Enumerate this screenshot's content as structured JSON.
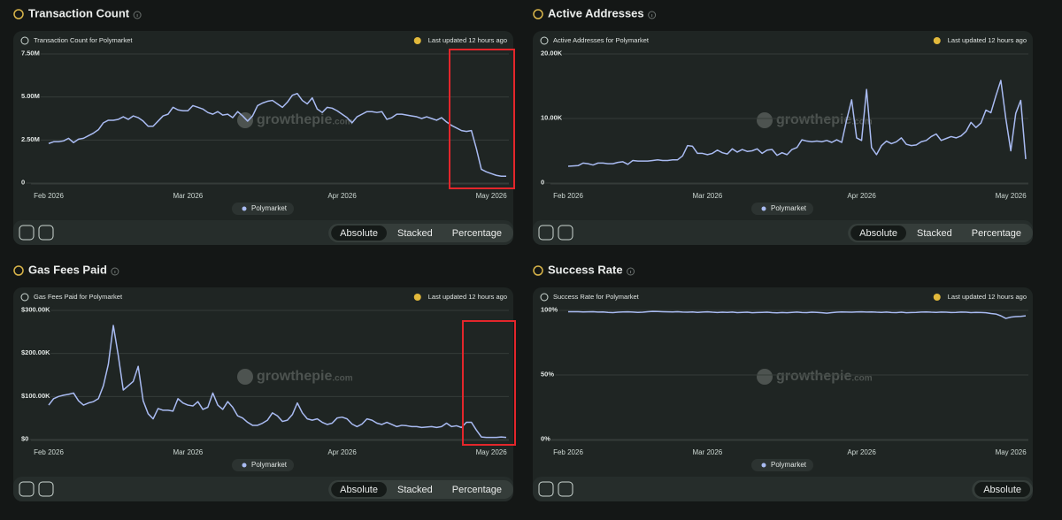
{
  "chart_data": [
    {
      "type": "line",
      "title": "Transaction Count",
      "subtitle": "Transaction Count for Polymarket",
      "updated": "Last updated 12 hours ago",
      "watermark": [
        "growthepie",
        ".com"
      ],
      "controls": [
        "Absolute",
        "Stacked",
        "Percentage"
      ],
      "categories": [
        "Feb 2026",
        null,
        null,
        null,
        null,
        null,
        null,
        null,
        null,
        null,
        null,
        null,
        null,
        null,
        null,
        null,
        null,
        null,
        null,
        null,
        null,
        null,
        null,
        null,
        null,
        null,
        null,
        null,
        "Mar 2026",
        null,
        null,
        null,
        null,
        null,
        null,
        null,
        null,
        null,
        null,
        null,
        null,
        null,
        null,
        null,
        null,
        null,
        null,
        null,
        null,
        null,
        null,
        null,
        null,
        null,
        null,
        null,
        null,
        null,
        null,
        "Apr 2026",
        null,
        null,
        null,
        null,
        null,
        null,
        null,
        null,
        null,
        null,
        null,
        null,
        null,
        null,
        null,
        null,
        null,
        null,
        null,
        null,
        null,
        null,
        null,
        null,
        null,
        null,
        null,
        null,
        null,
        "May 2026",
        null,
        null,
        null
      ],
      "series": [
        {
          "name": "Polymarket",
          "color": "#a9bbf2",
          "values": [
            2300000,
            2400000,
            2400000,
            2450000,
            2600000,
            2350000,
            2550000,
            2600000,
            2750000,
            2900000,
            3100000,
            3500000,
            3650000,
            3650000,
            3700000,
            3850000,
            3700000,
            3900000,
            3800000,
            3600000,
            3300000,
            3300000,
            3600000,
            3900000,
            4000000,
            4400000,
            4250000,
            4200000,
            4200000,
            4500000,
            4400000,
            4300000,
            4100000,
            4000000,
            4150000,
            3950000,
            4000000,
            3800000,
            4150000,
            3900000,
            3600000,
            3900000,
            4500000,
            4650000,
            4750000,
            4800000,
            4600000,
            4400000,
            4700000,
            5100000,
            5200000,
            4800000,
            4600000,
            4950000,
            4300000,
            4100000,
            4400000,
            4350000,
            4200000,
            4000000,
            3800000,
            3500000,
            3850000,
            4000000,
            4150000,
            4150000,
            4100000,
            4150000,
            3700000,
            3800000,
            4000000,
            4000000,
            3950000,
            3900000,
            3850000,
            3750000,
            3850000,
            3750000,
            3650000,
            3800000,
            3550000,
            3350000,
            3200000,
            3050000,
            3000000,
            3050000,
            2000000,
            800000,
            650000,
            550000,
            450000,
            400000,
            400000
          ]
        }
      ],
      "ylim": [
        0,
        7500000
      ],
      "yticks": [
        0,
        {
          "value": 2500000,
          "label": "2.50M"
        },
        {
          "value": 5000000,
          "label": "5.00M"
        },
        {
          "value": 7500000,
          "label": "7.50M"
        }
      ],
      "grid": true
    },
    {
      "type": "line",
      "title": "Active Addresses",
      "subtitle": "Active Addresses for Polymarket",
      "updated": "Last updated 12 hours ago",
      "watermark": [
        "growthepie",
        ".com"
      ],
      "controls": [
        "Absolute",
        "Stacked",
        "Percentage"
      ],
      "categories": [
        "Feb 2026",
        null,
        null,
        null,
        null,
        null,
        null,
        null,
        null,
        null,
        null,
        null,
        null,
        null,
        null,
        null,
        null,
        null,
        null,
        null,
        null,
        null,
        null,
        null,
        null,
        null,
        null,
        null,
        "Mar 2026",
        null,
        null,
        null,
        null,
        null,
        null,
        null,
        null,
        null,
        null,
        null,
        null,
        null,
        null,
        null,
        null,
        null,
        null,
        null,
        null,
        null,
        null,
        null,
        null,
        null,
        null,
        null,
        null,
        null,
        null,
        "Apr 2026",
        null,
        null,
        null,
        null,
        null,
        null,
        null,
        null,
        null,
        null,
        null,
        null,
        null,
        null,
        null,
        null,
        null,
        null,
        null,
        null,
        null,
        null,
        null,
        null,
        null,
        null,
        null,
        null,
        null,
        "May 2026",
        null,
        null,
        null
      ],
      "series": [
        {
          "name": "Polymarket",
          "color": "#a9bbf2",
          "values": [
            2600,
            2650,
            2700,
            3100,
            3000,
            2800,
            3100,
            3100,
            3000,
            3000,
            3200,
            3300,
            2900,
            3500,
            3400,
            3400,
            3400,
            3500,
            3600,
            3500,
            3500,
            3600,
            3600,
            4200,
            5800,
            5700,
            4600,
            4600,
            4400,
            4600,
            5100,
            4700,
            4500,
            5300,
            4800,
            5200,
            4900,
            5000,
            5300,
            4600,
            5100,
            5200,
            4300,
            4700,
            4400,
            5200,
            5500,
            6700,
            6500,
            6400,
            6500,
            6400,
            6600,
            6300,
            6700,
            6300,
            9800,
            12900,
            7000,
            6600,
            14500,
            5500,
            4400,
            5800,
            6500,
            6100,
            6400,
            7000,
            6000,
            5800,
            5900,
            6400,
            6600,
            7200,
            7600,
            6600,
            6900,
            7200,
            7000,
            7300,
            8000,
            9400,
            8600,
            9300,
            11300,
            10900,
            13500,
            15900,
            10000,
            5000,
            10800,
            12800,
            3700
          ]
        }
      ],
      "ylim": [
        0,
        20000
      ],
      "yticks": [
        0,
        {
          "value": 10000,
          "label": "10.00K"
        },
        {
          "value": 20000,
          "label": "20.00K"
        }
      ],
      "grid": true
    },
    {
      "type": "line",
      "title": "Gas Fees Paid",
      "subtitle": "Gas Fees Paid for Polymarket",
      "updated": "Last updated 12 hours ago",
      "watermark": [
        "growthepie",
        ".com"
      ],
      "controls": [
        "Absolute",
        "Stacked",
        "Percentage"
      ],
      "categories": [
        "Feb 2026",
        null,
        null,
        null,
        null,
        null,
        null,
        null,
        null,
        null,
        null,
        null,
        null,
        null,
        null,
        null,
        null,
        null,
        null,
        null,
        null,
        null,
        null,
        null,
        null,
        null,
        null,
        null,
        "Mar 2026",
        null,
        null,
        null,
        null,
        null,
        null,
        null,
        null,
        null,
        null,
        null,
        null,
        null,
        null,
        null,
        null,
        null,
        null,
        null,
        null,
        null,
        null,
        null,
        null,
        null,
        null,
        null,
        null,
        null,
        null,
        "Apr 2026",
        null,
        null,
        null,
        null,
        null,
        null,
        null,
        null,
        null,
        null,
        null,
        null,
        null,
        null,
        null,
        null,
        null,
        null,
        null,
        null,
        null,
        null,
        null,
        null,
        null,
        null,
        null,
        null,
        null,
        "May 2026",
        null,
        null,
        null
      ],
      "series": [
        {
          "name": "Polymarket",
          "color": "#a9bbf2",
          "values": [
            80000,
            95000,
            100000,
            103000,
            105000,
            108000,
            90000,
            80000,
            85000,
            88000,
            95000,
            125000,
            175000,
            265000,
            195000,
            115000,
            125000,
            135000,
            170000,
            90000,
            60000,
            48000,
            72000,
            68000,
            68000,
            66000,
            95000,
            85000,
            80000,
            78000,
            88000,
            70000,
            75000,
            108000,
            80000,
            70000,
            88000,
            75000,
            55000,
            50000,
            40000,
            33000,
            33000,
            38000,
            45000,
            62000,
            55000,
            42000,
            45000,
            58000,
            85000,
            62000,
            48000,
            45000,
            48000,
            40000,
            35000,
            38000,
            50000,
            52000,
            48000,
            36000,
            30000,
            36000,
            48000,
            45000,
            38000,
            35000,
            40000,
            35000,
            30000,
            33000,
            32000,
            30000,
            30000,
            28000,
            29000,
            30000,
            28000,
            30000,
            38000,
            30000,
            32000,
            28000,
            40000,
            40000,
            22000,
            6000,
            5000,
            5000,
            5000,
            6000,
            5000
          ]
        }
      ],
      "ylim": [
        0,
        300000
      ],
      "yticks": [
        {
          "value": 0,
          "label": "$0"
        },
        {
          "value": 100000,
          "label": "$100.00K"
        },
        {
          "value": 200000,
          "label": "$200.00K"
        },
        {
          "value": 300000,
          "label": "$300.00K"
        }
      ],
      "grid": true
    },
    {
      "type": "line",
      "title": "Success Rate",
      "subtitle": "Success Rate for Polymarket",
      "updated": "Last updated 12 hours ago",
      "watermark": [
        "growthepie",
        ".com"
      ],
      "controls": [
        "Absolute"
      ],
      "categories": [
        "Feb 2026",
        null,
        null,
        null,
        null,
        null,
        null,
        null,
        null,
        null,
        null,
        null,
        null,
        null,
        null,
        null,
        null,
        null,
        null,
        null,
        null,
        null,
        null,
        null,
        null,
        null,
        null,
        null,
        "Mar 2026",
        null,
        null,
        null,
        null,
        null,
        null,
        null,
        null,
        null,
        null,
        null,
        null,
        null,
        null,
        null,
        null,
        null,
        null,
        null,
        null,
        null,
        null,
        null,
        null,
        null,
        null,
        null,
        null,
        null,
        null,
        "Apr 2026",
        null,
        null,
        null,
        null,
        null,
        null,
        null,
        null,
        null,
        null,
        null,
        null,
        null,
        null,
        null,
        null,
        null,
        null,
        null,
        null,
        null,
        null,
        null,
        null,
        null,
        null,
        null,
        null,
        null,
        "May 2026",
        null,
        null,
        null
      ],
      "series": [
        {
          "name": "Polymarket",
          "color": "#a9bbf2",
          "values": [
            99,
            99,
            99,
            98.8,
            98.9,
            99,
            98.7,
            98.8,
            98.5,
            98.3,
            98.6,
            98.8,
            98.9,
            98.7,
            98.5,
            98.6,
            99,
            99.2,
            99.1,
            99,
            98.9,
            98.8,
            99,
            98.7,
            98.6,
            98.8,
            98.5,
            98.7,
            98.9,
            98.6,
            98.4,
            98.6,
            98.5,
            98.7,
            98.3,
            98.5,
            98.6,
            98.2,
            98.4,
            98.5,
            98.6,
            98.3,
            98.1,
            98.4,
            98.2,
            98.5,
            98.7,
            98.4,
            98.3,
            98.6,
            98.5,
            98.2,
            97.9,
            98.3,
            98.6,
            98.8,
            98.7,
            98.6,
            98.8,
            98.9,
            98.7,
            98.8,
            98.6,
            98.5,
            98.7,
            98.4,
            98.3,
            98.6,
            98.2,
            98.4,
            98.5,
            98.7,
            98.8,
            98.6,
            98.5,
            98.7,
            98.6,
            98.4,
            98.5,
            98.7,
            98.6,
            98.3,
            98.5,
            98.4,
            98.2,
            97.6,
            97.2,
            95.8,
            93.8,
            94.8,
            95.2,
            95.4,
            95.8
          ]
        }
      ],
      "ylim": [
        0,
        100
      ],
      "yticks": [
        {
          "value": 0,
          "label": "0%"
        },
        {
          "value": 50,
          "label": "50%"
        },
        {
          "value": 100,
          "label": "100%"
        }
      ],
      "grid": true
    }
  ]
}
